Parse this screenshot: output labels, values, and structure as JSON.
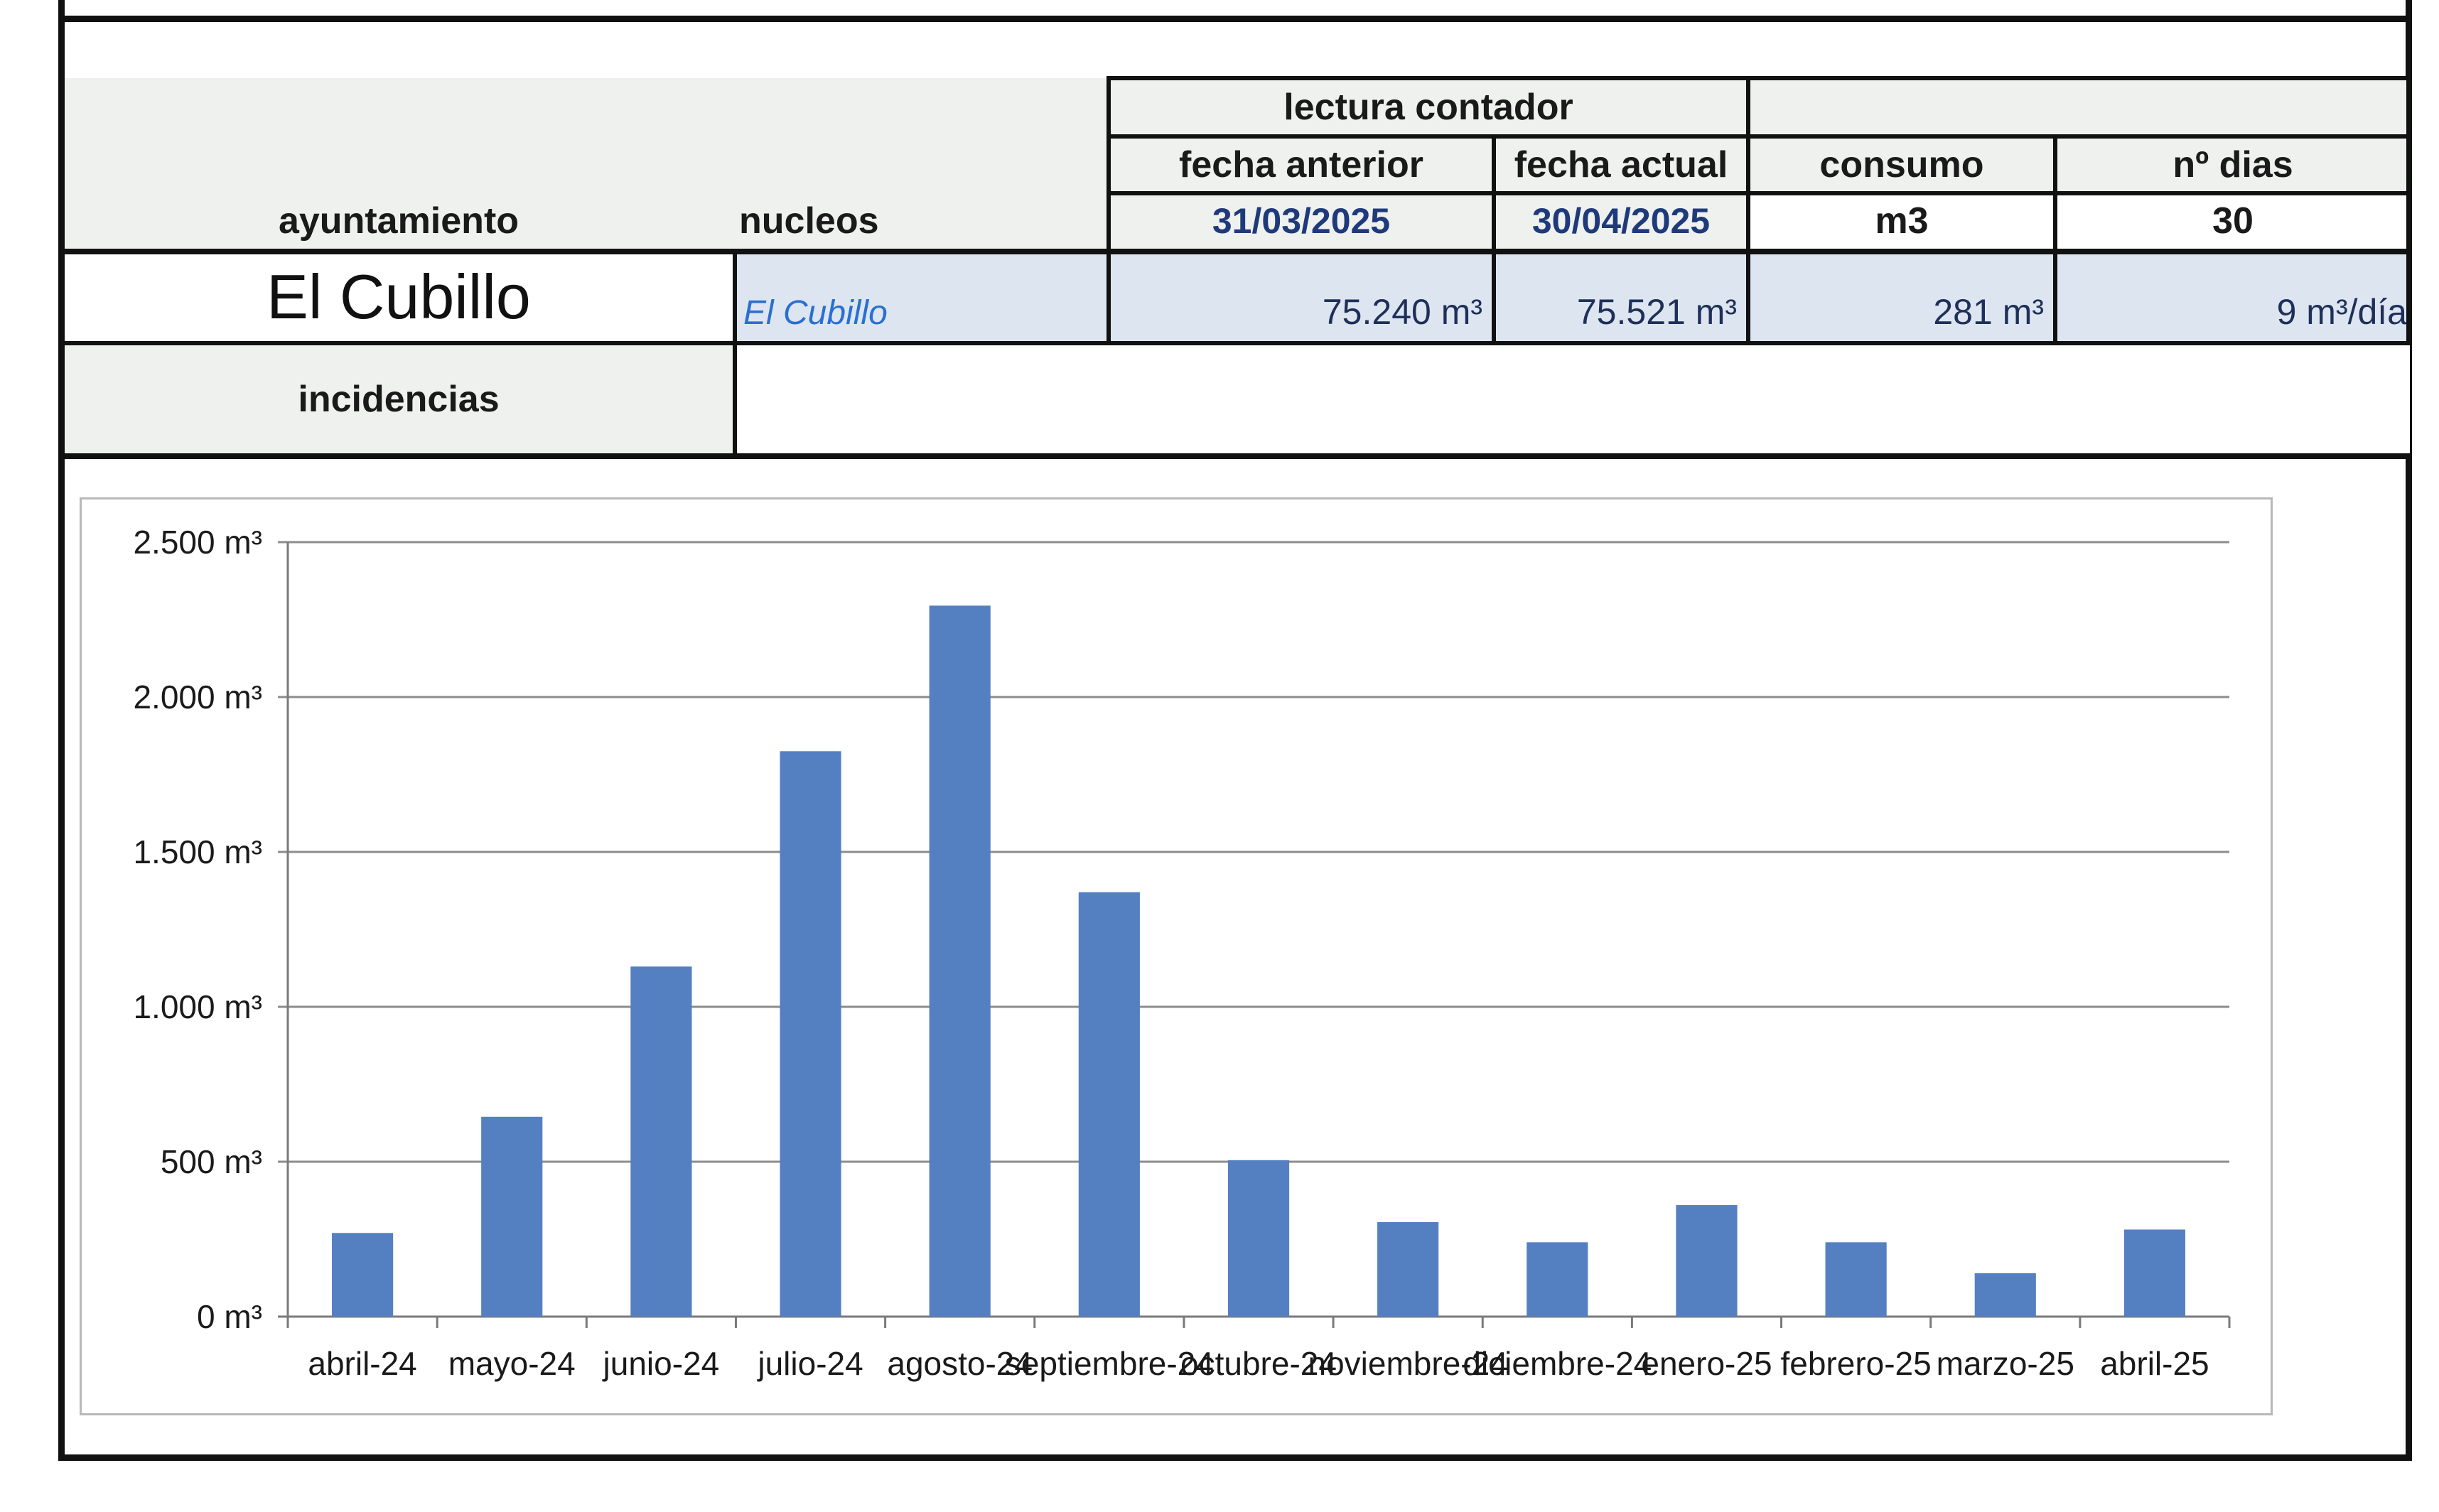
{
  "table": {
    "header_group": "lectura contador",
    "col_ayuntamiento": "ayuntamiento",
    "col_nucleos": "nucleos",
    "col_fecha_anterior": "fecha anterior",
    "col_fecha_actual": "fecha actual",
    "col_consumo": "consumo",
    "col_dias": "nº dias",
    "fecha_anterior_value": "31/03/2025",
    "fecha_actual_value": "30/04/2025",
    "consumo_unit": "m3",
    "dias_value": "30",
    "ayuntamiento_value": "El Cubillo",
    "nucleo_value": "El Cubillo",
    "lectura_anterior": "75.240 m³",
    "lectura_actual": "75.521 m³",
    "consumo_value": "281 m³",
    "consumo_diario": "9 m³/día",
    "incidencias_label": "incidencias",
    "incidencias_value": ""
  },
  "chart_data": {
    "type": "bar",
    "categories": [
      "abril-24",
      "mayo-24",
      "junio-24",
      "julio-24",
      "agosto-24",
      "septiembre-24",
      "octubre-24",
      "noviembre-24",
      "diciembre-24",
      "enero-25",
      "febrero-25",
      "marzo-25",
      "abril-25"
    ],
    "values": [
      270,
      645,
      1130,
      1825,
      2295,
      1370,
      505,
      305,
      240,
      360,
      240,
      140,
      281
    ],
    "ylim": [
      0,
      2500
    ],
    "yticks": [
      0,
      500,
      1000,
      1500,
      2000,
      2500
    ],
    "ytick_labels": [
      "0 m³",
      "500 m³",
      "1.000 m³",
      "1.500 m³",
      "2.000 m³",
      "2.500 m³"
    ],
    "bar_color": "#5480c1",
    "grid": true
  }
}
